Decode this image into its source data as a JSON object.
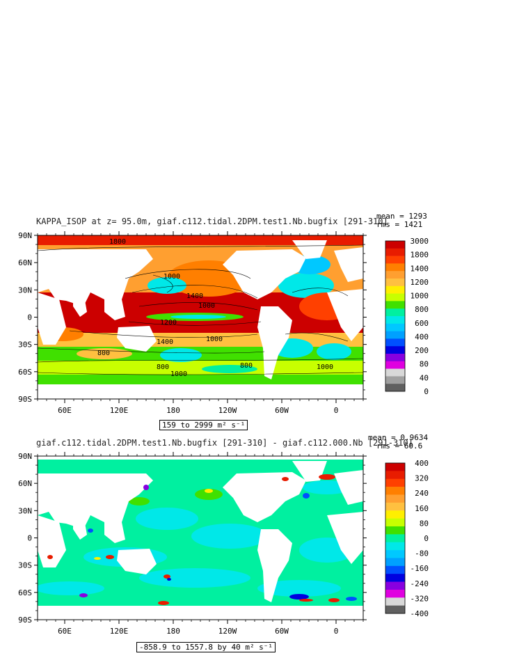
{
  "panels": [
    {
      "title": "KAPPA_ISOP at z=  95.0m, giaf.c112.tidal.2DPM.test1.Nb.bugfix [291-310]",
      "stats": {
        "mean": "mean = 1293",
        "rms": "rms = 1421"
      },
      "range_text": "159 to 2999 m² s⁻¹",
      "colorbar": {
        "labels": [
          "3000",
          "1800",
          "1400",
          "1200",
          "1000",
          "800",
          "600",
          "400",
          "200",
          "80",
          "40",
          "0"
        ],
        "colors": [
          "#cc0000",
          "#e81c00",
          "#ff4000",
          "#ff7f00",
          "#ff9f30",
          "#ffc040",
          "#ffef00",
          "#c8ff00",
          "#40e000",
          "#00f0a0",
          "#00e8e8",
          "#00c8ff",
          "#00a0ff",
          "#0050ff",
          "#0000e0",
          "#8800e0",
          "#e000e0",
          "#d8d8d8",
          "#a0a0a0",
          "#606060"
        ]
      },
      "contour_labels": [
        "1800",
        "1000",
        "1400",
        "1200",
        "1400",
        "1000",
        "800",
        "800",
        "1000",
        "1000",
        "1000",
        "800"
      ]
    },
    {
      "title": "giaf.c112.tidal.2DPM.test1.Nb.bugfix [291-310] - giaf.c112.000.Nb [291-310]",
      "stats": {
        "mean": "mean = 0.9634",
        "rms": "rms = 60.6"
      },
      "range_text": "-858.9 to 1557.8 by 40 m² s⁻¹",
      "colorbar": {
        "labels": [
          "400",
          "320",
          "240",
          "160",
          "80",
          "0",
          "-80",
          "-160",
          "-240",
          "-320",
          "-400"
        ],
        "colors": [
          "#cc0000",
          "#e81c00",
          "#ff4000",
          "#ff7f00",
          "#ff9f30",
          "#ffc040",
          "#ffef00",
          "#c8ff00",
          "#40e000",
          "#00f0a0",
          "#00e8e8",
          "#00c8ff",
          "#00a0ff",
          "#0050ff",
          "#0000e0",
          "#8800e0",
          "#e000e0",
          "#d8d8d8",
          "#606060"
        ]
      }
    }
  ],
  "axes": {
    "lat_ticks": [
      "90N",
      "60N",
      "30N",
      "0",
      "30S",
      "60S",
      "90S"
    ],
    "lon_ticks": [
      "60E",
      "120E",
      "180",
      "120W",
      "60W",
      "0"
    ]
  },
  "chart_data": [
    {
      "type": "heatmap",
      "title": "KAPPA_ISOP at z=  95.0m, giaf.c112.tidal.2DPM.test1.Nb.bugfix [291-310]",
      "xlabel": "",
      "ylabel": "",
      "x_ticks": [
        "60E",
        "120E",
        "180",
        "120W",
        "60W",
        "0"
      ],
      "y_ticks": [
        "90N",
        "60N",
        "30N",
        "0",
        "30S",
        "60S",
        "90S"
      ],
      "levels": [
        0,
        40,
        80,
        200,
        400,
        600,
        800,
        1000,
        1200,
        1400,
        1800,
        3000
      ],
      "min": 159,
      "max": 2999,
      "mean": 1293,
      "rms": 1421,
      "units": "m² s⁻¹"
    },
    {
      "type": "heatmap",
      "title": "giaf.c112.tidal.2DPM.test1.Nb.bugfix [291-310] - giaf.c112.000.Nb [291-310]",
      "xlabel": "",
      "ylabel": "",
      "x_ticks": [
        "60E",
        "120E",
        "180",
        "120W",
        "60W",
        "0"
      ],
      "y_ticks": [
        "90N",
        "60N",
        "30N",
        "0",
        "30S",
        "60S",
        "90S"
      ],
      "levels": [
        -400,
        -320,
        -240,
        -160,
        -80,
        0,
        80,
        160,
        240,
        320,
        400
      ],
      "min": -858.9,
      "max": 1557.8,
      "interval": 40,
      "mean": 0.9634,
      "rms": 60.6,
      "units": "m² s⁻¹"
    }
  ]
}
